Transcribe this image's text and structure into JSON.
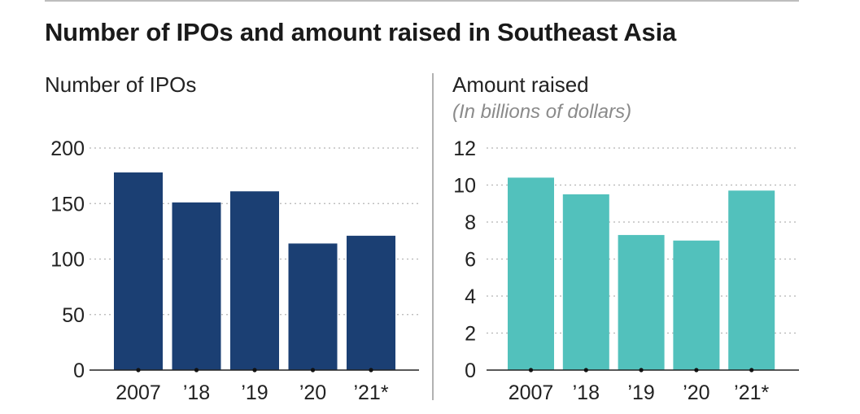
{
  "title": "Number of IPOs and amount raised in Southeast Asia",
  "chart_data": [
    {
      "type": "bar",
      "title": "Number of IPOs",
      "subtitle": "",
      "categories": [
        "2007",
        "’18",
        "’19",
        "’20",
        "’21*"
      ],
      "values": [
        178,
        151,
        161,
        114,
        121
      ],
      "ylim": [
        0,
        200
      ],
      "yticks": [
        0,
        50,
        100,
        150,
        200
      ],
      "color": "#1b3f73",
      "grid": true
    },
    {
      "type": "bar",
      "title": "Amount raised",
      "subtitle": "(In billions of dollars)",
      "categories": [
        "2007",
        "’18",
        "’19",
        "’20",
        "’21*"
      ],
      "values": [
        10.4,
        9.5,
        7.3,
        7.0,
        9.7
      ],
      "ylim": [
        0,
        12
      ],
      "yticks": [
        0,
        2,
        4,
        6,
        8,
        10,
        12
      ],
      "color": "#52c1bc",
      "grid": true
    }
  ]
}
